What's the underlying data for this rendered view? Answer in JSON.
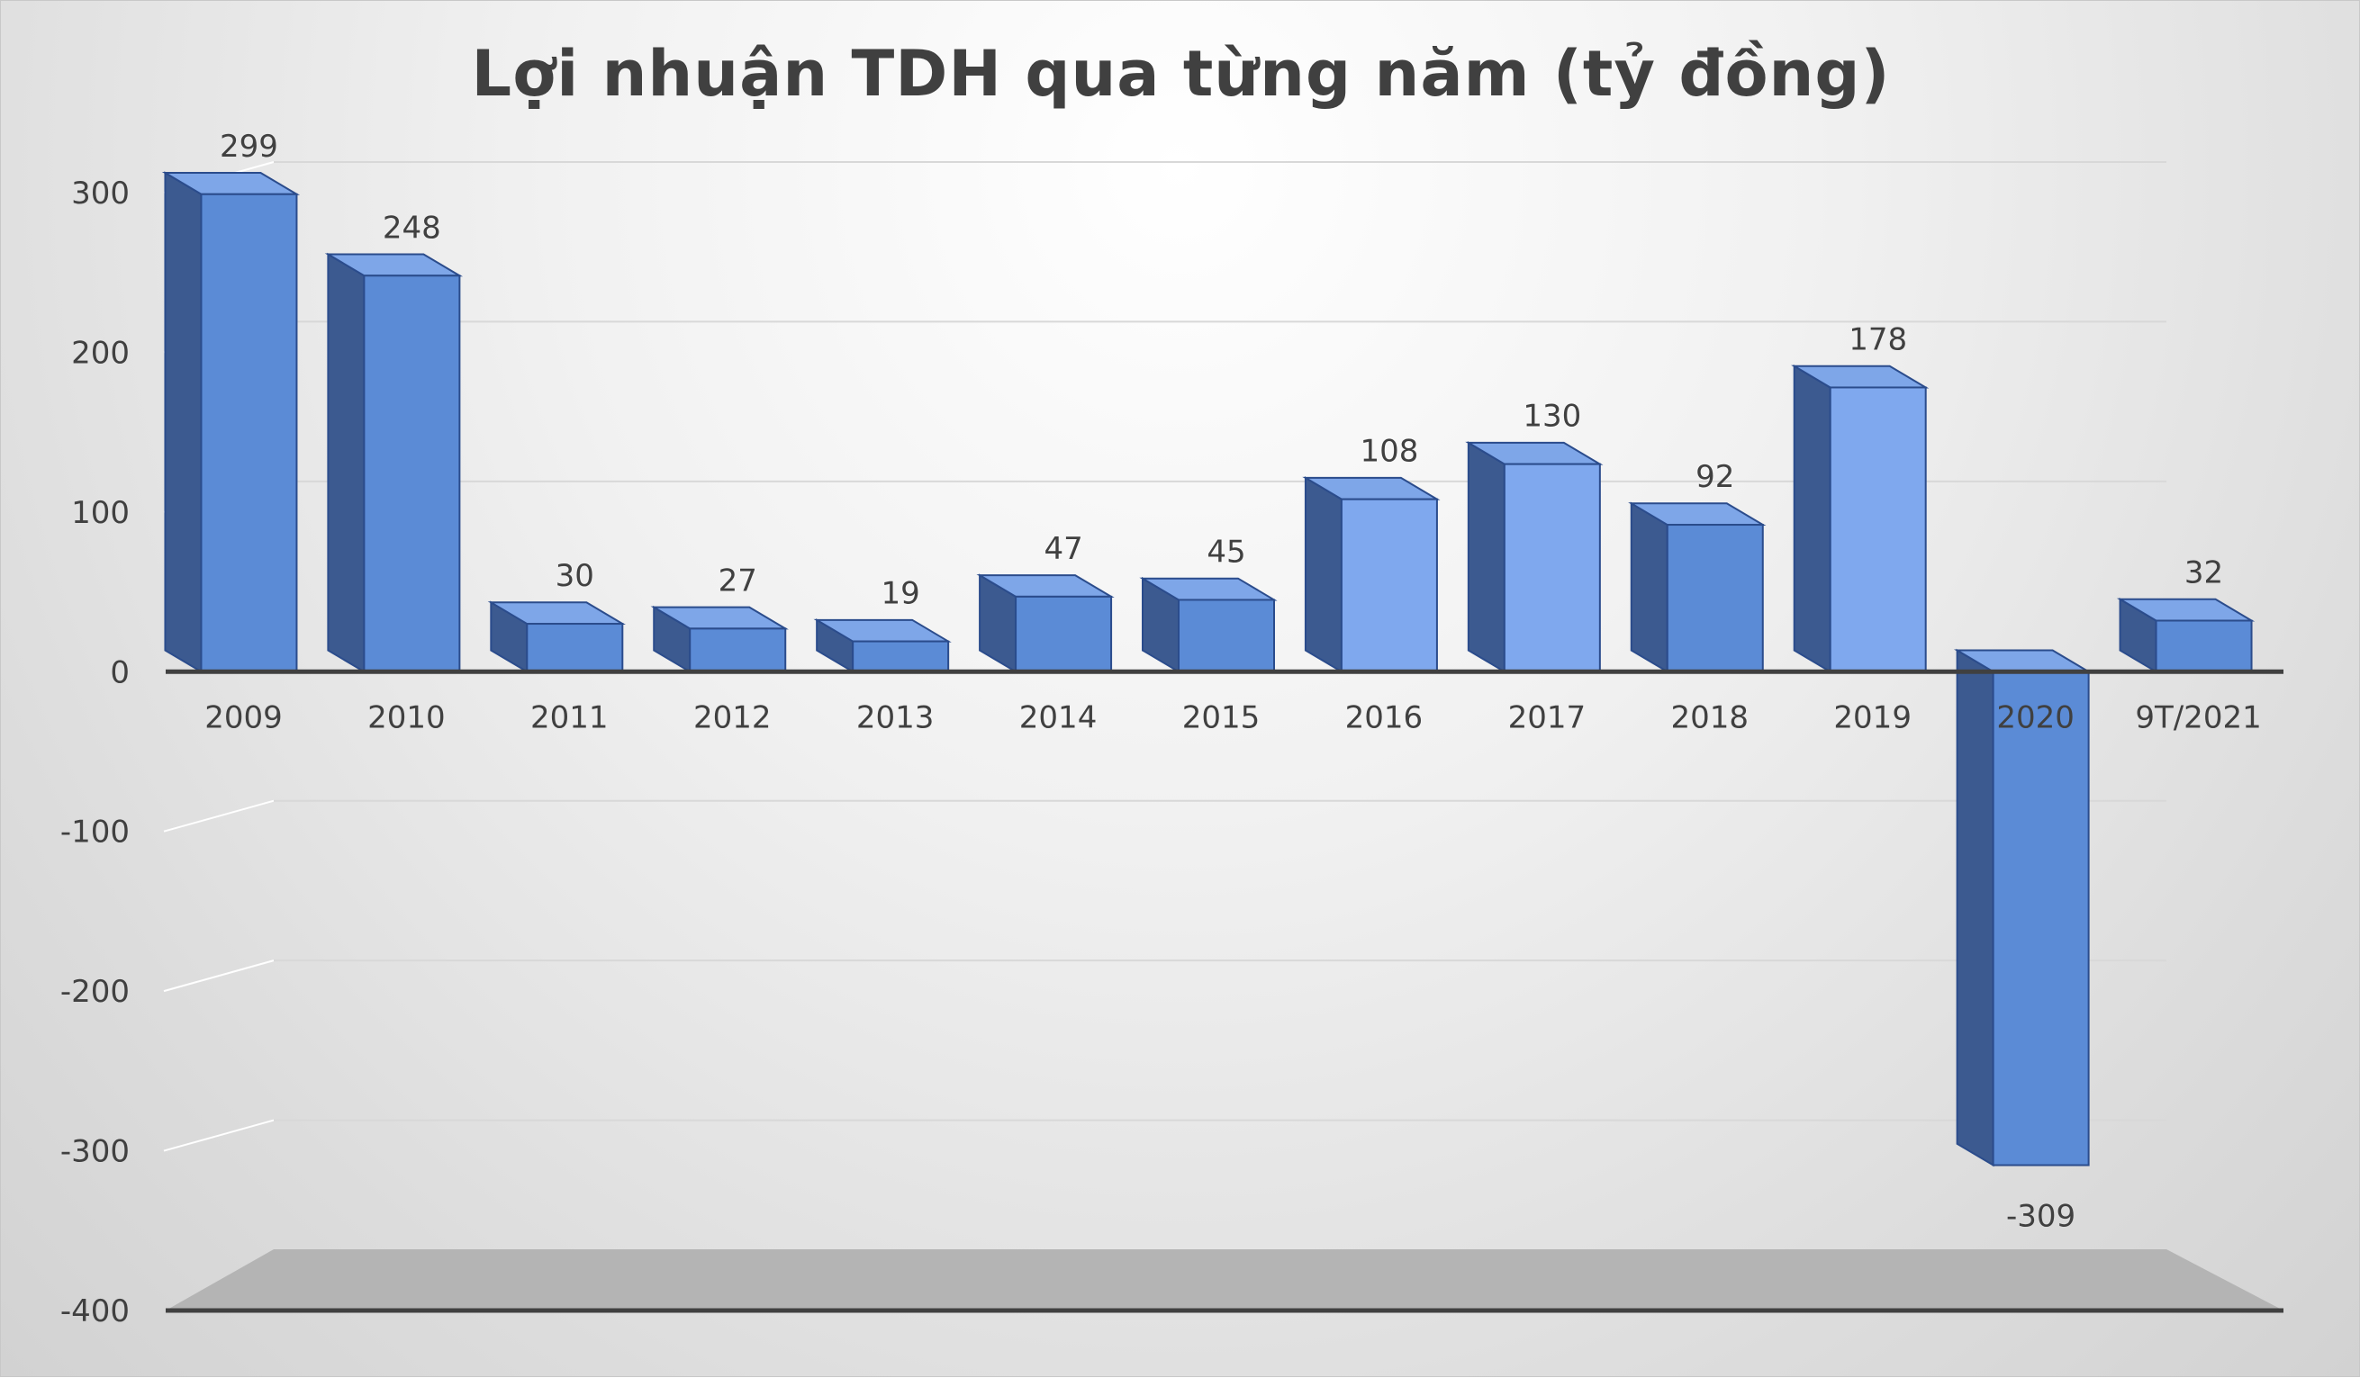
{
  "chart_data": {
    "type": "bar",
    "title": "Lợi nhuận TDH qua từng năm (tỷ đồng)",
    "xlabel": "",
    "ylabel": "",
    "categories": [
      "2009",
      "2010",
      "2011",
      "2012",
      "2013",
      "2014",
      "2015",
      "2016",
      "2017",
      "2018",
      "2019",
      "2020",
      "9T/2021"
    ],
    "values": [
      299,
      248,
      30,
      27,
      19,
      47,
      45,
      108,
      130,
      92,
      178,
      -309,
      32
    ],
    "data_labels": [
      "299",
      "248",
      "30",
      "27",
      "19",
      "47",
      "45",
      "108",
      "130",
      "92",
      "178",
      "-309",
      "32"
    ],
    "ylim": [
      -400,
      300
    ],
    "yticks": [
      300,
      200,
      100,
      0,
      -100,
      -200,
      -300,
      -400
    ],
    "ytick_labels": [
      "300",
      "200",
      "100",
      "0",
      "-100",
      "-200",
      "-300",
      "-400"
    ],
    "grid": true,
    "legend": "none",
    "style": "3d-column"
  },
  "colors": {
    "bar_front": "#5b8bd6",
    "bar_front_light": "#7fa8ee",
    "bar_side": "#3c5a90",
    "bar_top": "#7ea6e8",
    "bar_edge": "#2b4c8c",
    "axis": "#404040",
    "floor": "#b4b4b4",
    "gridline": "#d8d8d8"
  }
}
